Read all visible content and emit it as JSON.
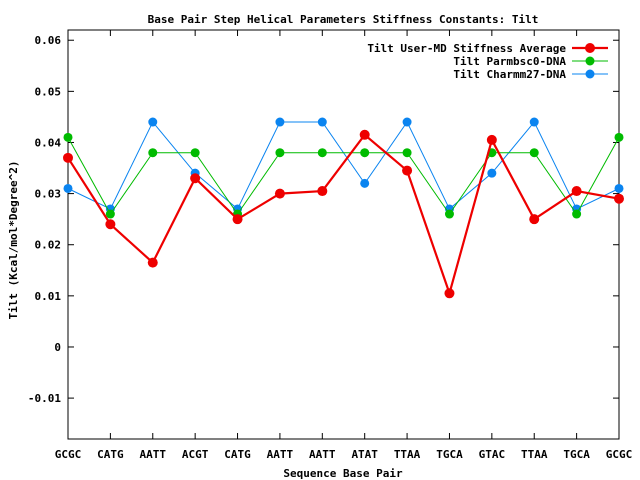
{
  "chart_data": {
    "type": "line",
    "title": "Base Pair Step Helical Parameters Stiffness Constants: Tilt",
    "xlabel": "Sequence Base Pair",
    "ylabel": "Tilt (Kcal/mol*Degree^2)",
    "categories": [
      "GCGC",
      "CATG",
      "AATT",
      "ACGT",
      "CATG",
      "AATT",
      "AATT",
      "ATAT",
      "TTAA",
      "TGCA",
      "GTAC",
      "TTAA",
      "TGCA",
      "GCGC"
    ],
    "ylim": [
      -0.018,
      0.062
    ],
    "yticks": [
      -0.01,
      0,
      0.01,
      0.02,
      0.03,
      0.04,
      0.05,
      0.06
    ],
    "ytick_labels": [
      "-0.01",
      "0",
      "0.01",
      "0.02",
      "0.03",
      "0.04",
      "0.05",
      "0.06"
    ],
    "legend_position": "top-right",
    "grid": false,
    "series": [
      {
        "name": "Tilt User-MD Stiffness Average",
        "color": "#ee0000",
        "values": [
          0.037,
          0.024,
          0.0165,
          0.033,
          0.025,
          0.03,
          0.0305,
          0.0415,
          0.0345,
          0.0105,
          0.0405,
          0.025,
          0.0305,
          0.029
        ]
      },
      {
        "name": "Tilt Parmbsc0-DNA",
        "color": "#00bb00",
        "values": [
          0.041,
          0.026,
          0.038,
          0.038,
          0.026,
          0.038,
          0.038,
          0.038,
          0.038,
          0.026,
          0.038,
          0.038,
          0.026,
          0.041
        ]
      },
      {
        "name": "Tilt Charmm27-DNA",
        "color": "#0a84f0",
        "values": [
          0.031,
          0.027,
          0.044,
          0.034,
          0.027,
          0.044,
          0.044,
          0.032,
          0.044,
          0.027,
          0.034,
          0.044,
          0.027,
          0.031
        ]
      }
    ]
  }
}
